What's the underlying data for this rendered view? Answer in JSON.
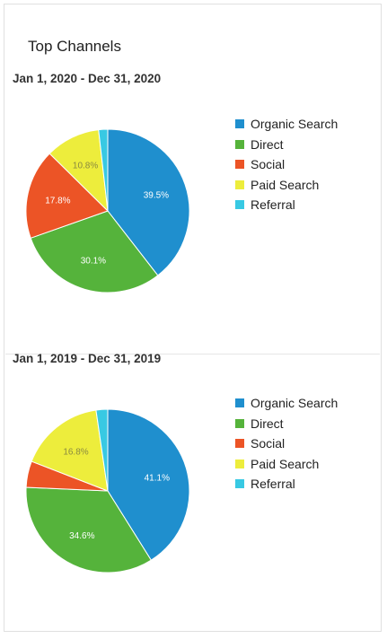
{
  "panel": {
    "title": "Top Channels"
  },
  "legend": [
    {
      "label": "Organic Search",
      "color": "#1f8fce"
    },
    {
      "label": "Direct",
      "color": "#55b33b"
    },
    {
      "label": "Social",
      "color": "#ec5426"
    },
    {
      "label": "Paid Search",
      "color": "#eded3c"
    },
    {
      "label": "Referral",
      "color": "#38c9e3"
    }
  ],
  "chart_data": [
    {
      "type": "pie",
      "title": "Jan 1, 2020 - Dec 31, 2020",
      "categories": [
        "Organic Search",
        "Direct",
        "Social",
        "Paid Search",
        "Referral"
      ],
      "values": [
        39.5,
        30.1,
        17.8,
        10.8,
        1.8
      ],
      "labels": [
        "39.5%",
        "30.1%",
        "17.8%",
        "10.8%",
        ""
      ],
      "colors": [
        "#1f8fce",
        "#55b33b",
        "#ec5426",
        "#eded3c",
        "#38c9e3"
      ],
      "legend_position": "right"
    },
    {
      "type": "pie",
      "title": "Jan 1, 2019 - Dec 31, 2019",
      "categories": [
        "Organic Search",
        "Direct",
        "Social",
        "Paid Search",
        "Referral"
      ],
      "values": [
        41.1,
        34.6,
        5.2,
        16.8,
        2.3
      ],
      "labels": [
        "41.1%",
        "34.6%",
        "",
        "16.8%",
        ""
      ],
      "colors": [
        "#1f8fce",
        "#55b33b",
        "#ec5426",
        "#eded3c",
        "#38c9e3"
      ],
      "legend_position": "right"
    }
  ]
}
